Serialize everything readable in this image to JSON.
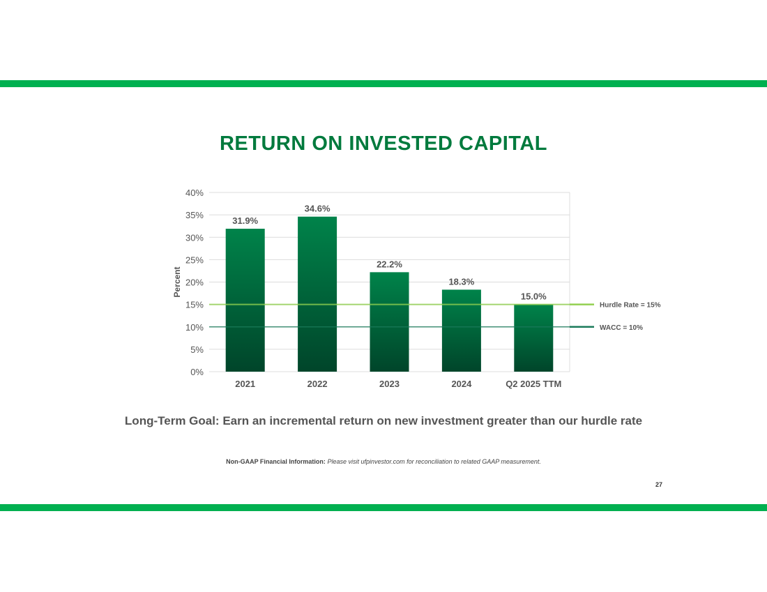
{
  "slide": {
    "title": "RETURN ON INVESTED CAPITAL",
    "goal": "Long-Term Goal: Earn an incremental return on new investment greater than our hurdle rate",
    "note_label": "Non-GAAP Financial Information:",
    "note_text": "Please visit ufpinvestor.com for reconciliation to related GAAP measurement.",
    "page_number": "27"
  },
  "colors": {
    "band": "#00b050",
    "title": "#007a3d",
    "bar_top": "#00834a",
    "bar_bottom": "#00452a",
    "hurdle": "#92d050",
    "wacc": "#1a7a5a"
  },
  "chart_data": {
    "type": "bar",
    "title": "",
    "ylabel": "Percent",
    "xlabel": "",
    "categories": [
      "2021",
      "2022",
      "2023",
      "2024",
      "Q2 2025 TTM"
    ],
    "values": [
      31.9,
      34.6,
      22.2,
      18.3,
      15.0
    ],
    "data_labels": [
      "31.9%",
      "34.6%",
      "22.2%",
      "18.3%",
      "15.0%"
    ],
    "ylim": [
      0,
      40
    ],
    "yticks": [
      0,
      5,
      10,
      15,
      20,
      25,
      30,
      35,
      40
    ],
    "ytick_labels": [
      "0%",
      "5%",
      "10%",
      "15%",
      "20%",
      "25%",
      "30%",
      "35%",
      "40%"
    ],
    "grid": true,
    "reference_lines": [
      {
        "label": "Hurdle Rate = 15%",
        "value": 15
      },
      {
        "label": "WACC = 10%",
        "value": 10
      }
    ]
  }
}
